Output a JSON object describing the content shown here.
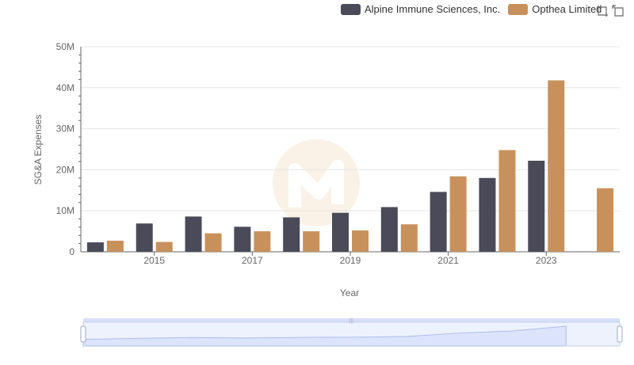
{
  "colors": {
    "series1": "#4a4a58",
    "series2": "#c8915c",
    "grid": "#e6e6e6",
    "axis": "#666666",
    "zoom_fill": "#dbe4fb"
  },
  "legend": {
    "items": [
      {
        "name": "Alpine Immune Sciences, Inc.",
        "color": "#4a4a58"
      },
      {
        "name": "Opthea Limited",
        "color": "#c8915c"
      }
    ]
  },
  "toolbox": {
    "icons": [
      "zoom-icon",
      "restore-icon"
    ]
  },
  "chart_data": {
    "type": "bar",
    "title": "",
    "xlabel": "Year",
    "ylabel": "SG&A Expenses",
    "ylim": [
      0,
      50000000
    ],
    "yticks": [
      {
        "value": 0,
        "label": "0"
      },
      {
        "value": 10000000,
        "label": "10M"
      },
      {
        "value": 20000000,
        "label": "20M"
      },
      {
        "value": 30000000,
        "label": "30M"
      },
      {
        "value": 40000000,
        "label": "40M"
      },
      {
        "value": 50000000,
        "label": "50M"
      }
    ],
    "categories": [
      "2014",
      "2015",
      "2016",
      "2017",
      "2018",
      "2019",
      "2020",
      "2021",
      "2022",
      "2023",
      "2024"
    ],
    "xtick_labels": [
      "2015",
      "2017",
      "2019",
      "2021",
      "2023"
    ],
    "series": [
      {
        "name": "Alpine Immune Sciences, Inc.",
        "values": [
          2300000,
          6900000,
          8600000,
          6100000,
          8400000,
          9500000,
          10900000,
          14600000,
          18000000,
          22200000,
          null
        ]
      },
      {
        "name": "Opthea Limited",
        "values": [
          2700000,
          2400000,
          4500000,
          5000000,
          5000000,
          5200000,
          6700000,
          18400000,
          24800000,
          41800000,
          15500000
        ]
      }
    ],
    "legend_position": "top-right"
  }
}
